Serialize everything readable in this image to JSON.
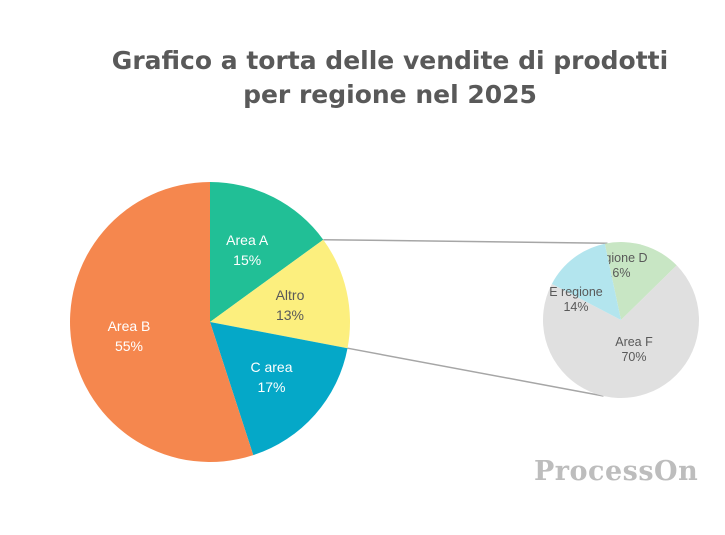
{
  "chart_data": {
    "type": "pie",
    "title_lines": [
      "Grafico a torta delle vendite di prodotti",
      "per regione nel 2025"
    ],
    "main_pie": {
      "slices": [
        {
          "name": "Area A",
          "value": 15,
          "label": "15%",
          "color": "#21bf96"
        },
        {
          "name": "Altro",
          "value": 13,
          "label": "13%",
          "color": "#fcef7e"
        },
        {
          "name": "C area",
          "value": 17,
          "label": "17%",
          "color": "#05a8c8"
        },
        {
          "name": "Area B",
          "value": 55,
          "label": "55%",
          "color": "#f5874e"
        }
      ]
    },
    "sub_pie": {
      "parent": "Altro",
      "slices": [
        {
          "name": "Regione D",
          "value": 16,
          "label": "16%",
          "color": "#c8e6c4"
        },
        {
          "name": "Area F",
          "value": 70,
          "label": "70%",
          "color": "#e0e0e0"
        },
        {
          "name": "E regione",
          "value": 14,
          "label": "14%",
          "color": "#b3e5ee"
        }
      ]
    },
    "connector_color": "#a6a6a6"
  },
  "watermark": "ProcessOn"
}
